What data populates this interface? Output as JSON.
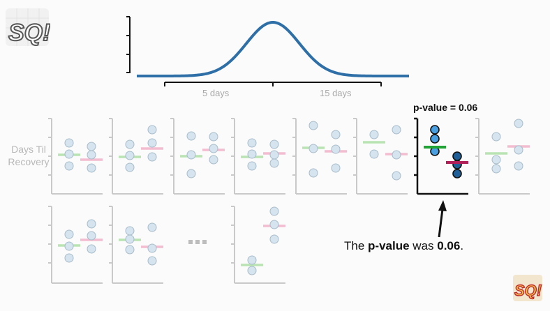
{
  "curve": {
    "tick_labels": [
      "5 days",
      "15 days"
    ]
  },
  "y_axis_label": "Days Til Recovery",
  "highlight": {
    "title": "p-value = 0.06"
  },
  "caption": {
    "prefix": "The ",
    "bold1": "p-value",
    "middle": " was ",
    "bold2": "0.06",
    "suffix": "."
  },
  "ellipsis": "...",
  "logo_text": "SQ!",
  "colors": {
    "curve": "#2f6fa8",
    "faded_point": "#d5e4ee",
    "faded_green": "#b9e3b3",
    "faded_pink": "#f3bcd0",
    "highlight_point_a": "#4a9fe0",
    "highlight_point_b": "#1f5e96",
    "highlight_green": "#21a336",
    "highlight_pink": "#b01f58"
  }
}
